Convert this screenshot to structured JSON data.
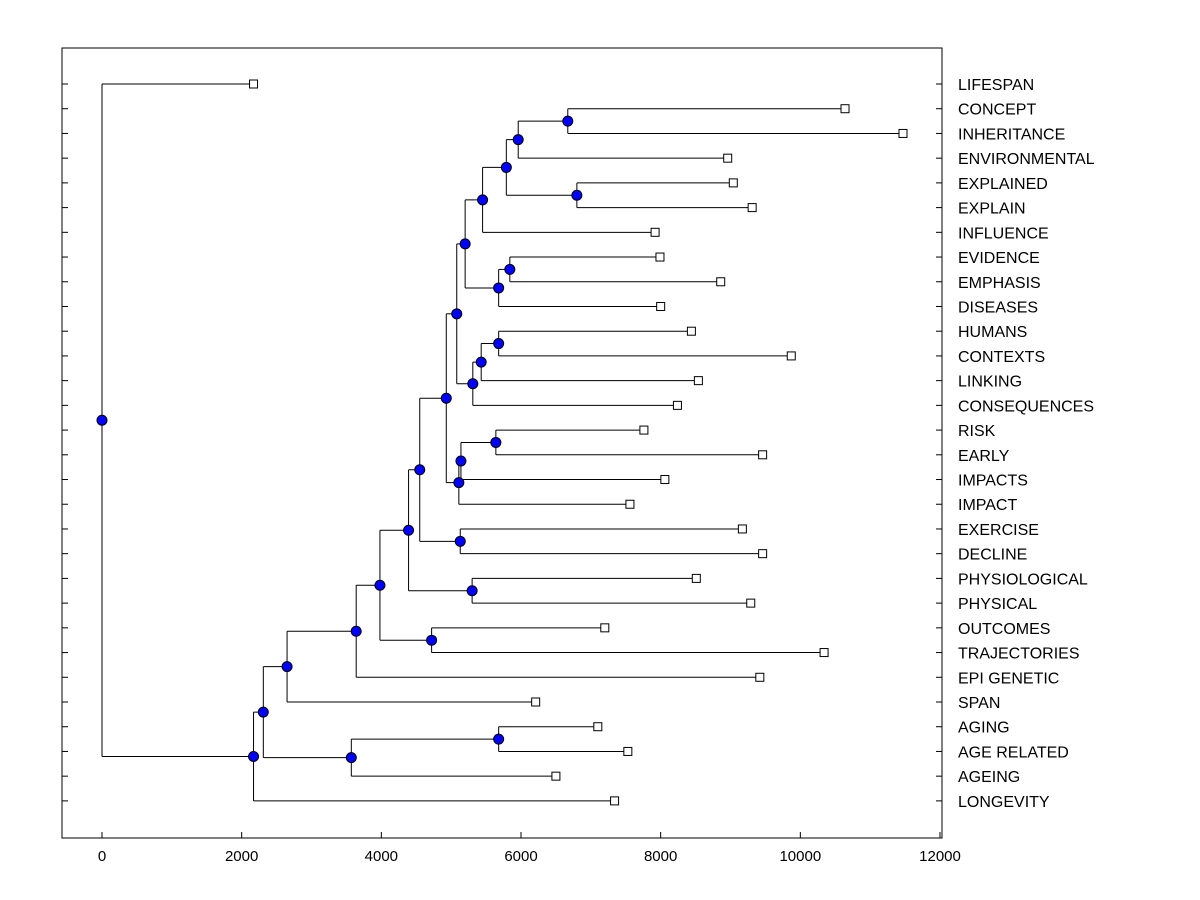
{
  "chart_data": {
    "type": "dendrogram",
    "title": "",
    "xlabel": "",
    "ylabel": "",
    "xlim": [
      -600,
      12000
    ],
    "x_ticks": [
      0,
      2000,
      4000,
      6000,
      8000,
      10000,
      12000
    ],
    "grid": false,
    "leaves": [
      {
        "label": "LIFESPAN",
        "x": 2170
      },
      {
        "label": "CONCEPT",
        "x": 10640
      },
      {
        "label": "INHERITANCE",
        "x": 11470
      },
      {
        "label": "ENVIRONMENTAL",
        "x": 8960
      },
      {
        "label": "EXPLAINED",
        "x": 9040
      },
      {
        "label": "EXPLAIN",
        "x": 9310
      },
      {
        "label": "INFLUENCE",
        "x": 7920
      },
      {
        "label": "EVIDENCE",
        "x": 7990
      },
      {
        "label": "EMPHASIS",
        "x": 8860
      },
      {
        "label": "DISEASES",
        "x": 8000
      },
      {
        "label": "HUMANS",
        "x": 8440
      },
      {
        "label": "CONTEXTS",
        "x": 9870
      },
      {
        "label": "LINKING",
        "x": 8540
      },
      {
        "label": "CONSEQUENCES",
        "x": 8240
      },
      {
        "label": "RISK",
        "x": 7760
      },
      {
        "label": "EARLY",
        "x": 9460
      },
      {
        "label": "IMPACTS",
        "x": 8060
      },
      {
        "label": "IMPACT",
        "x": 7560
      },
      {
        "label": "EXERCISE",
        "x": 9170
      },
      {
        "label": "DECLINE",
        "x": 9460
      },
      {
        "label": "PHYSIOLOGICAL",
        "x": 8510
      },
      {
        "label": "PHYSICAL",
        "x": 9290
      },
      {
        "label": "OUTCOMES",
        "x": 7200
      },
      {
        "label": "TRAJECTORIES",
        "x": 10340
      },
      {
        "label": "EPI GENETIC",
        "x": 9420
      },
      {
        "label": "SPAN",
        "x": 6210
      },
      {
        "label": "AGING",
        "x": 7100
      },
      {
        "label": "AGE RELATED",
        "x": 7530
      },
      {
        "label": "AGEING",
        "x": 6500
      },
      {
        "label": "LONGEVITY",
        "x": 7340
      }
    ],
    "nodes": [
      {
        "id": "n1",
        "x": 6670,
        "children": [
          "L1",
          "L2"
        ]
      },
      {
        "id": "n2",
        "x": 5960,
        "children": [
          "n1",
          "L3"
        ]
      },
      {
        "id": "n3",
        "x": 6800,
        "children": [
          "L4",
          "L5"
        ]
      },
      {
        "id": "n4",
        "x": 5790,
        "children": [
          "n2",
          "n3"
        ]
      },
      {
        "id": "n5",
        "x": 5450,
        "children": [
          "n4",
          "L6"
        ]
      },
      {
        "id": "n6",
        "x": 5840,
        "children": [
          "L7",
          "L8"
        ]
      },
      {
        "id": "n7",
        "x": 5680,
        "children": [
          "n6",
          "L9"
        ]
      },
      {
        "id": "n8",
        "x": 5200,
        "children": [
          "n5",
          "n7"
        ]
      },
      {
        "id": "n9",
        "x": 5680,
        "children": [
          "L10",
          "L11"
        ]
      },
      {
        "id": "n10",
        "x": 5430,
        "children": [
          "n9",
          "L12"
        ]
      },
      {
        "id": "n11",
        "x": 5310,
        "children": [
          "n10",
          "L13"
        ]
      },
      {
        "id": "n12",
        "x": 5080,
        "children": [
          "n8",
          "n11"
        ]
      },
      {
        "id": "n13",
        "x": 5640,
        "children": [
          "L14",
          "L15"
        ]
      },
      {
        "id": "n14",
        "x": 5140,
        "children": [
          "n13",
          "L16"
        ]
      },
      {
        "id": "n15",
        "x": 5110,
        "children": [
          "n14",
          "L17"
        ]
      },
      {
        "id": "n16",
        "x": 4930,
        "children": [
          "n12",
          "n15"
        ]
      },
      {
        "id": "n17",
        "x": 5130,
        "children": [
          "L18",
          "L19"
        ]
      },
      {
        "id": "n18",
        "x": 4550,
        "children": [
          "n16",
          "n17"
        ]
      },
      {
        "id": "n19",
        "x": 5300,
        "children": [
          "L20",
          "L21"
        ]
      },
      {
        "id": "n20",
        "x": 4390,
        "children": [
          "n18",
          "n19"
        ]
      },
      {
        "id": "n21",
        "x": 4720,
        "children": [
          "L22",
          "L23"
        ]
      },
      {
        "id": "n22",
        "x": 3980,
        "children": [
          "n20",
          "n21"
        ]
      },
      {
        "id": "n23",
        "x": 3640,
        "children": [
          "n22",
          "L24"
        ]
      },
      {
        "id": "n24",
        "x": 2650,
        "children": [
          "n23",
          "L25"
        ]
      },
      {
        "id": "n25",
        "x": 5680,
        "children": [
          "L26",
          "L27"
        ]
      },
      {
        "id": "n26",
        "x": 3570,
        "children": [
          "n25",
          "L28"
        ]
      },
      {
        "id": "n27",
        "x": 2310,
        "children": [
          "n24",
          "n26"
        ]
      },
      {
        "id": "n28",
        "x": 2170,
        "children": [
          "n27",
          "L29"
        ]
      },
      {
        "id": "root",
        "x": 0,
        "children": [
          "L0",
          "n28"
        ]
      }
    ],
    "colors": {
      "node_fill": "#0000ff",
      "leaf_fill": "#ffffff",
      "line": "#000000",
      "frame": "#000000"
    }
  }
}
